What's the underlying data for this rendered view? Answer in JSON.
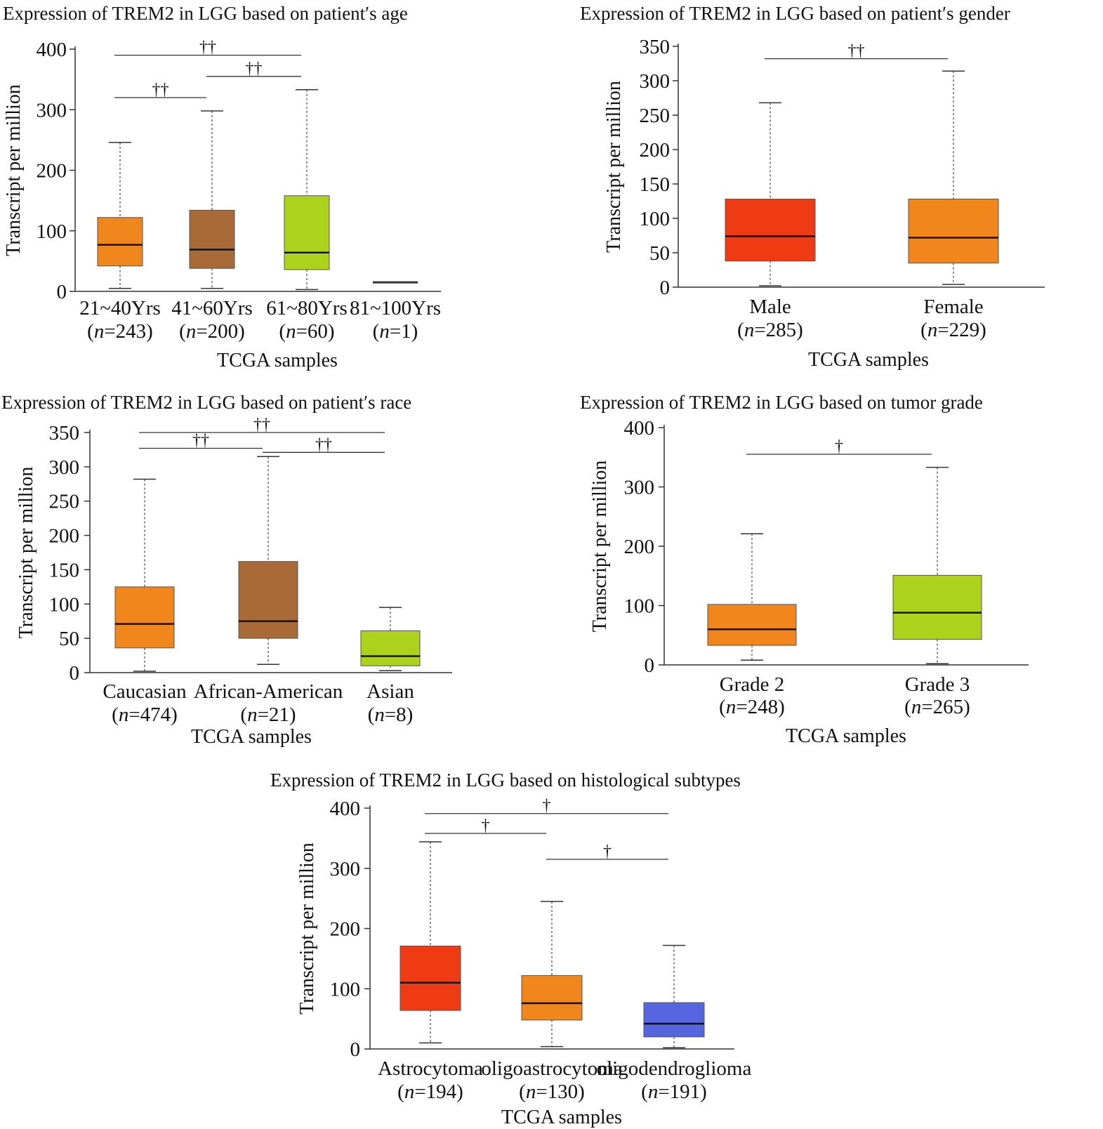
{
  "chart_data": [
    {
      "type": "box",
      "title": "Expression of TREM2 in LGG based on patient′s age",
      "xlabel": "TCGA samples",
      "ylabel": "Transcript per million",
      "ylim": [
        0,
        400
      ],
      "yticks": [
        0,
        100,
        200,
        300,
        400
      ],
      "categories": [
        {
          "label": "21~40Yrs",
          "n": "n",
          "count": "=243"
        },
        {
          "label": "41~60Yrs",
          "n": "n",
          "count": "=200"
        },
        {
          "label": "61~80Yrs",
          "n": "n",
          "count": "=60"
        },
        {
          "label": "81~100Yrs",
          "n": "n",
          "count": "=1"
        }
      ],
      "boxes": [
        {
          "min": 5,
          "q1": 42,
          "median": 77,
          "q3": 122,
          "max": 246,
          "color": "#f0861c"
        },
        {
          "min": 5,
          "q1": 38,
          "median": 69,
          "q3": 134,
          "max": 298,
          "color": "#a86a36"
        },
        {
          "min": 3,
          "q1": 36,
          "median": 64,
          "q3": 158,
          "max": 333,
          "color": "#acd21c"
        },
        {
          "min": 15,
          "q1": 15,
          "median": 15,
          "q3": 15,
          "max": 15,
          "color": "#555555"
        }
      ],
      "significance": [
        {
          "from": 0,
          "to": 1,
          "y": 320,
          "mark": "††"
        },
        {
          "from": 1,
          "to": 2,
          "y": 355,
          "mark": "††"
        },
        {
          "from": 0,
          "to": 2,
          "y": 390,
          "mark": "††"
        }
      ]
    },
    {
      "type": "box",
      "title": "Expression of TREM2 in LGG based on patient′s gender",
      "xlabel": "TCGA samples",
      "ylabel": "Transcript per million",
      "ylim": [
        0,
        350
      ],
      "yticks": [
        0,
        50,
        100,
        150,
        200,
        250,
        300,
        350
      ],
      "categories": [
        {
          "label": "Male",
          "n": "n",
          "count": "=285"
        },
        {
          "label": "Female",
          "n": "n",
          "count": "=229"
        }
      ],
      "boxes": [
        {
          "min": 2,
          "q1": 38,
          "median": 74,
          "q3": 128,
          "max": 268,
          "color": "#ee3b13"
        },
        {
          "min": 4,
          "q1": 35,
          "median": 72,
          "q3": 128,
          "max": 314,
          "color": "#f0861c"
        }
      ],
      "significance": [
        {
          "from": 0,
          "to": 1,
          "y": 332,
          "mark": "††"
        }
      ]
    },
    {
      "type": "box",
      "title": "Expression of TREM2 in LGG based on patient′s race",
      "xlabel": "TCGA samples",
      "ylabel": "Transcript per million",
      "ylim": [
        0,
        350
      ],
      "yticks": [
        0,
        50,
        100,
        150,
        200,
        250,
        300,
        350
      ],
      "categories": [
        {
          "label": "Caucasian",
          "n": "n",
          "count": "=474"
        },
        {
          "label": "African-American",
          "n": "n",
          "count": "=21"
        },
        {
          "label": "Asian",
          "n": "n",
          "count": "=8"
        }
      ],
      "boxes": [
        {
          "min": 2,
          "q1": 36,
          "median": 71,
          "q3": 125,
          "max": 282,
          "color": "#f0861c"
        },
        {
          "min": 12,
          "q1": 50,
          "median": 75,
          "q3": 162,
          "max": 315,
          "color": "#a86a36"
        },
        {
          "min": 3,
          "q1": 10,
          "median": 24,
          "q3": 61,
          "max": 95,
          "color": "#acd21c"
        }
      ],
      "significance": [
        {
          "from": 0,
          "to": 1,
          "y": 327,
          "mark": "††"
        },
        {
          "from": 1,
          "to": 2,
          "y": 321,
          "mark": "††"
        },
        {
          "from": 0,
          "to": 2,
          "y": 350,
          "mark": "††"
        }
      ]
    },
    {
      "type": "box",
      "title": "Expression of TREM2 in LGG based on tumor grade",
      "xlabel": "TCGA samples",
      "ylabel": "Transcript per million",
      "ylim": [
        0,
        400
      ],
      "yticks": [
        0,
        100,
        200,
        300,
        400
      ],
      "categories": [
        {
          "label": "Grade 2",
          "n": "n",
          "count": "=248"
        },
        {
          "label": "Grade 3",
          "n": "n",
          "count": "=265"
        }
      ],
      "boxes": [
        {
          "min": 8,
          "q1": 33,
          "median": 60,
          "q3": 102,
          "max": 221,
          "color": "#f0861c"
        },
        {
          "min": 2,
          "q1": 43,
          "median": 88,
          "q3": 151,
          "max": 333,
          "color": "#acd21c"
        }
      ],
      "significance": [
        {
          "from": 0,
          "to": 1,
          "y": 355,
          "mark": "†"
        }
      ]
    },
    {
      "type": "box",
      "title": "Expression of TREM2 in LGG based on histological subtypes",
      "xlabel": "TCGA samples",
      "ylabel": "Transcript per million",
      "ylim": [
        0,
        400
      ],
      "yticks": [
        0,
        100,
        200,
        300,
        400
      ],
      "categories": [
        {
          "label": "Astrocytoma",
          "n": "n",
          "count": "=194"
        },
        {
          "label": "oligoastrocytoma",
          "n": "n",
          "count": "=130"
        },
        {
          "label": "oligodendroglioma",
          "n": "n",
          "count": "=191"
        }
      ],
      "boxes": [
        {
          "min": 10,
          "q1": 64,
          "median": 110,
          "q3": 171,
          "max": 344,
          "color": "#ee3b13"
        },
        {
          "min": 4,
          "q1": 48,
          "median": 76,
          "q3": 122,
          "max": 245,
          "color": "#f0861c"
        },
        {
          "min": 2,
          "q1": 20,
          "median": 42,
          "q3": 77,
          "max": 172,
          "color": "#5566e0"
        }
      ],
      "significance": [
        {
          "from": 0,
          "to": 1,
          "y": 358,
          "mark": "†"
        },
        {
          "from": 1,
          "to": 2,
          "y": 315,
          "mark": "†"
        },
        {
          "from": 0,
          "to": 2,
          "y": 391,
          "mark": "†"
        }
      ]
    }
  ]
}
